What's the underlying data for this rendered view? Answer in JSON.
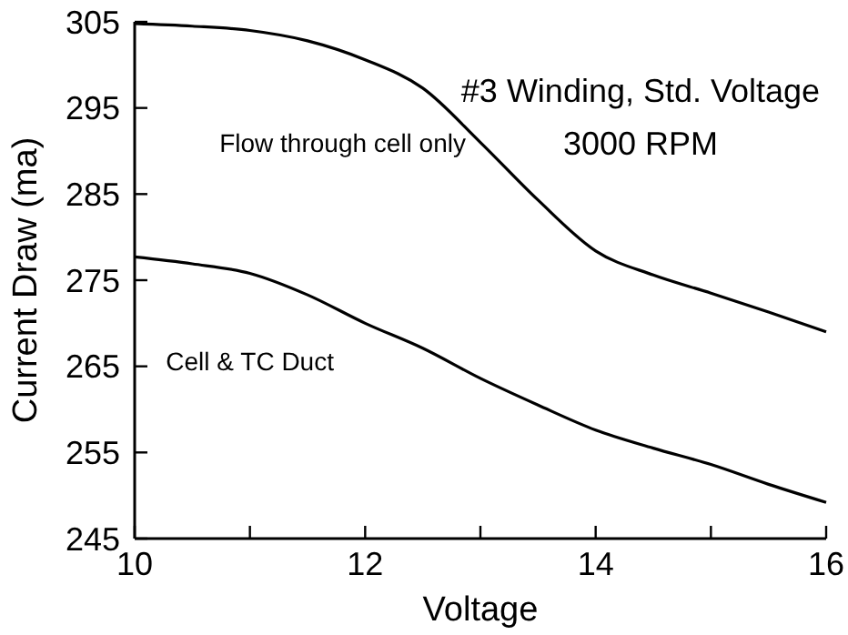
{
  "chart_data": {
    "type": "line",
    "title": "#3 Winding, Std. Voltage",
    "subtitle": "3000 RPM",
    "xlabel": "Voltage",
    "ylabel": "Current Draw (ma)",
    "x": [
      10,
      10.5,
      11,
      11.5,
      12,
      12.5,
      13,
      13.5,
      14,
      14.5,
      15,
      15.5,
      16
    ],
    "series": [
      {
        "name": "Flow through cell only",
        "color": "#000000",
        "values": [
          304.8,
          304.5,
          304,
          302.8,
          300.6,
          297.3,
          291,
          284.3,
          278.4,
          275.6,
          273.5,
          271.3,
          269
        ]
      },
      {
        "name": "Cell & TC Duct",
        "color": "#000000",
        "values": [
          277.7,
          276.9,
          275.8,
          273.3,
          270,
          267.1,
          263.6,
          260.5,
          257.6,
          255.5,
          253.6,
          251.3,
          249.2
        ]
      }
    ],
    "xlim": [
      10,
      16
    ],
    "xticks": [
      10,
      {
        "value": 11,
        "label": null
      },
      12,
      {
        "value": 13,
        "label": null
      },
      14,
      {
        "value": 15,
        "label": null
      },
      16
    ],
    "ylim": [
      245,
      305
    ],
    "yticks": [
      245,
      255,
      265,
      275,
      285,
      295,
      305
    ],
    "grid": false,
    "marker": "none",
    "line_style": "solid"
  }
}
